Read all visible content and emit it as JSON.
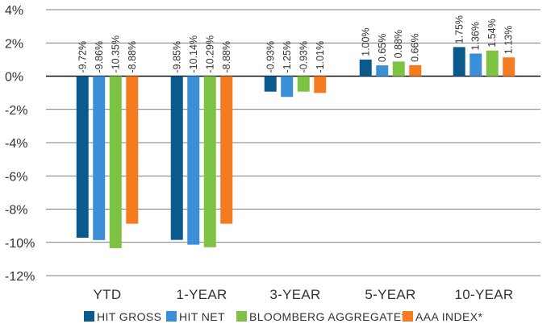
{
  "chart_data": {
    "type": "bar",
    "categories": [
      "YTD",
      "1-YEAR",
      "3-YEAR",
      "5-YEAR",
      "10-YEAR"
    ],
    "ylim": [
      -12,
      4
    ],
    "yticks": [
      4,
      2,
      0,
      -2,
      -4,
      -6,
      -8,
      -10,
      -12
    ],
    "ytick_labels": [
      "4%",
      "2%",
      "0%",
      "-2%",
      "-4%",
      "-6%",
      "-8%",
      "-10%",
      "-12%"
    ],
    "grid": true,
    "legend_position": "bottom",
    "series": [
      {
        "name": "HIT GROSS",
        "color": "#0b5a8e",
        "values": [
          -9.72,
          -9.85,
          -0.93,
          1.0,
          1.75
        ],
        "labels": [
          "-9.72%",
          "-9.85%",
          "-0.93%",
          "1.00%",
          "1.75%"
        ]
      },
      {
        "name": "HIT NET",
        "color": "#3a8fd6",
        "values": [
          -9.86,
          -10.14,
          -1.25,
          0.65,
          1.36
        ],
        "labels": [
          "-9.86%",
          "-10.14%",
          "-1.25%",
          "0.65%",
          "1.36%"
        ]
      },
      {
        "name": "BLOOMBERG AGGREGATE*",
        "color": "#7dc242",
        "values": [
          -10.35,
          -10.29,
          -0.93,
          0.88,
          1.54
        ],
        "labels": [
          "-10.35%",
          "-10.29%",
          "-0.93%",
          "0.88%",
          "1.54%"
        ]
      },
      {
        "name": "AAA INDEX*",
        "color": "#f47b20",
        "values": [
          -8.88,
          -8.88,
          -1.01,
          0.66,
          1.13
        ],
        "labels": [
          "-8.88%",
          "-8.88%",
          "-1.01%",
          "0.66%",
          "1.13%"
        ]
      }
    ]
  }
}
